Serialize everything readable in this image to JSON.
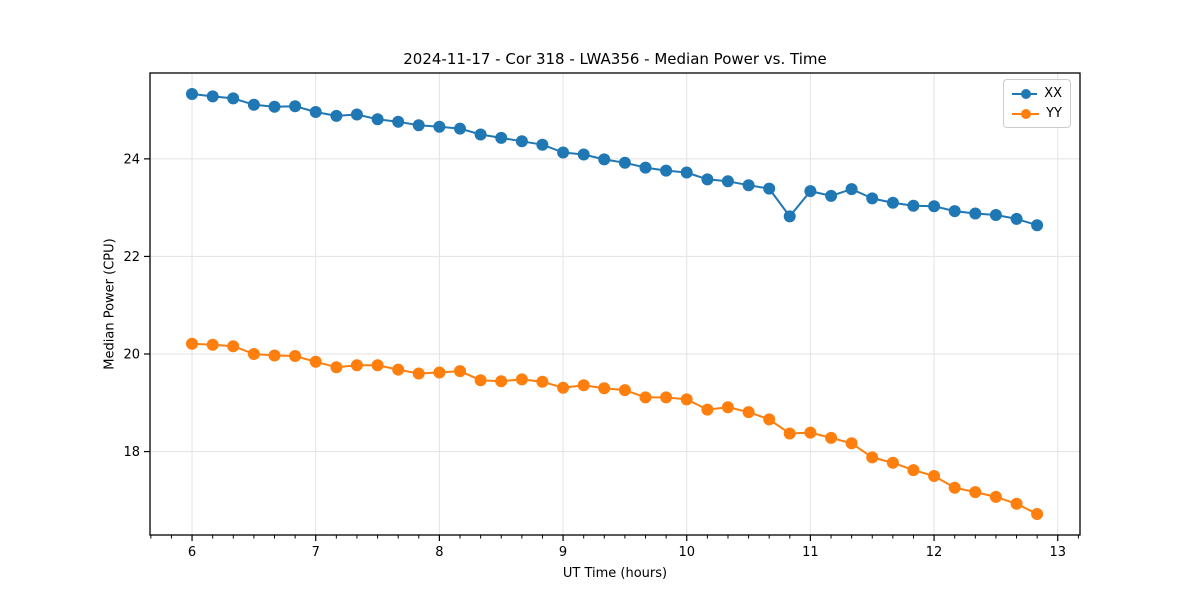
{
  "figure": {
    "background_color": "#ffffff",
    "text_color": "#000000"
  },
  "chart_data": {
    "type": "line",
    "title": "2024-11-17 - Cor 318 - LWA356 - Median Power vs. Time",
    "xlabel": "UT Time (hours)",
    "ylabel": "Median Power (CPU)",
    "xlim": [
      5.66,
      13.18
    ],
    "ylim": [
      16.29,
      25.76
    ],
    "xticks": [
      6,
      7,
      8,
      9,
      10,
      11,
      12,
      13
    ],
    "yticks": [
      18,
      20,
      22,
      24
    ],
    "x_minor_tick_step": 0.16667,
    "grid": true,
    "grid_color": "#e3e3e3",
    "spine_color": "#000000",
    "legend": {
      "position": "upper-right",
      "entries": [
        "XX",
        "YY"
      ]
    },
    "x": [
      6.0,
      6.167,
      6.333,
      6.5,
      6.667,
      6.833,
      7.0,
      7.167,
      7.333,
      7.5,
      7.667,
      7.833,
      8.0,
      8.167,
      8.333,
      8.5,
      8.667,
      8.833,
      9.0,
      9.167,
      9.333,
      9.5,
      9.667,
      9.833,
      10.0,
      10.167,
      10.333,
      10.5,
      10.667,
      10.833,
      11.0,
      11.167,
      11.333,
      11.5,
      11.667,
      11.833,
      12.0,
      12.167,
      12.333,
      12.5,
      12.667,
      12.833
    ],
    "series": [
      {
        "name": "XX",
        "color": "#1f77b4",
        "marker": "circle",
        "values": [
          25.33,
          25.28,
          25.24,
          25.11,
          25.07,
          25.08,
          24.96,
          24.88,
          24.91,
          24.81,
          24.76,
          24.69,
          24.66,
          24.62,
          24.5,
          24.43,
          24.36,
          24.29,
          24.13,
          24.09,
          23.99,
          23.92,
          23.82,
          23.76,
          23.72,
          23.58,
          23.54,
          23.46,
          23.39,
          22.82,
          23.34,
          23.24,
          23.38,
          23.19,
          23.1,
          23.04,
          23.03,
          22.93,
          22.88,
          22.85,
          22.77,
          22.64
        ]
      },
      {
        "name": "YY",
        "color": "#ff7f0e",
        "marker": "circle",
        "values": [
          20.21,
          20.19,
          20.16,
          20.0,
          19.97,
          19.96,
          19.84,
          19.73,
          19.77,
          19.77,
          19.68,
          19.6,
          19.62,
          19.65,
          19.46,
          19.44,
          19.48,
          19.43,
          19.31,
          19.36,
          19.3,
          19.26,
          19.11,
          19.11,
          19.07,
          18.86,
          18.91,
          18.81,
          18.66,
          18.37,
          18.39,
          18.28,
          18.17,
          17.88,
          17.77,
          17.62,
          17.5,
          17.26,
          17.17,
          17.07,
          16.93,
          16.72
        ]
      }
    ]
  }
}
